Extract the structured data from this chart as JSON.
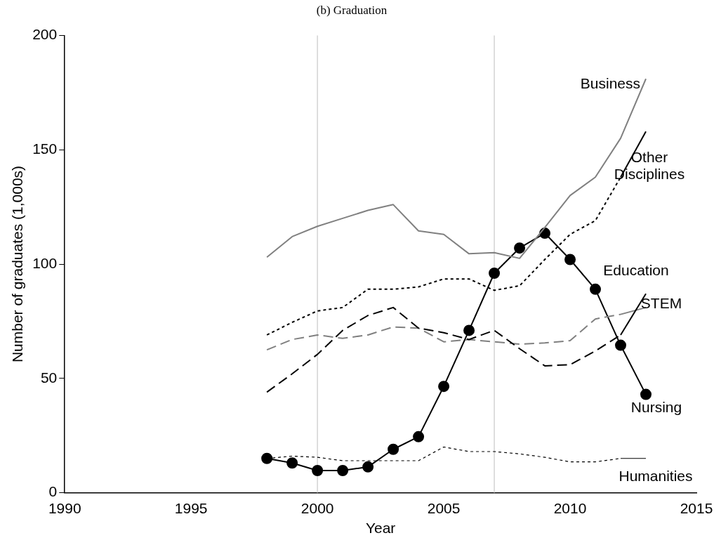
{
  "chart_data": {
    "type": "line",
    "title": "(b) Graduation",
    "xlabel": "Year",
    "ylabel": "Number of graduates (1,000s)",
    "x": [
      1998,
      1999,
      2000,
      2001,
      2002,
      2003,
      2004,
      2005,
      2006,
      2007,
      2008,
      2009,
      2010,
      2011,
      2012,
      2013
    ],
    "xlim": [
      1990,
      2015
    ],
    "xticks": [
      1990,
      1995,
      2000,
      2005,
      2010,
      2015
    ],
    "ylim": [
      0,
      200
    ],
    "yticks": [
      0,
      50,
      100,
      150,
      200
    ],
    "grid": false,
    "legend": false,
    "ref_lines": [
      {
        "axis": "x",
        "value": 2000,
        "color": "#d3d3d3"
      },
      {
        "axis": "x",
        "value": 2007,
        "color": "#d3d3d3"
      }
    ],
    "series": [
      {
        "name": "Business",
        "color": "#808080",
        "line_style": "solid",
        "marker": "none",
        "values": [
          103,
          112,
          116.5,
          120,
          123.5,
          126,
          114.5,
          113,
          104.5,
          105,
          102.5,
          116,
          130,
          138,
          155,
          181
        ]
      },
      {
        "name": "Other Disciplines",
        "color": "#000000",
        "line_style": "dotted",
        "marker": "none",
        "values": [
          69,
          74.5,
          79.5,
          81,
          89,
          89,
          90,
          93.5,
          93.5,
          88.5,
          90.5,
          102,
          113,
          119,
          138,
          158
        ]
      },
      {
        "name": "Education",
        "color": "#000000",
        "line_style": "dashed",
        "marker": "none",
        "values": [
          44,
          52,
          60.5,
          71,
          77.5,
          81,
          72,
          70,
          67,
          71,
          63,
          55.5,
          56,
          62,
          69,
          87
        ]
      },
      {
        "name": "STEM",
        "color": "#808080",
        "line_style": "dashed",
        "marker": "none",
        "values": [
          62.5,
          67,
          69,
          67.5,
          69,
          72.5,
          72,
          66,
          67,
          66,
          65,
          65.5,
          66.5,
          76,
          78,
          81
        ]
      },
      {
        "name": "Nursing",
        "color": "#000000",
        "line_style": "solid",
        "marker": "circle",
        "values": [
          15,
          13,
          9.7,
          9.7,
          11.3,
          19,
          24.5,
          46.5,
          71,
          96,
          107,
          113.5,
          102,
          89,
          64.5,
          43
        ]
      },
      {
        "name": "Humanities",
        "color": "#000000",
        "line_style": "dotted",
        "marker": "none",
        "values": [
          15,
          16,
          15.5,
          14,
          14,
          14,
          14,
          20,
          18,
          18,
          17,
          15.5,
          13.5,
          13.5,
          15,
          15
        ]
      }
    ]
  }
}
